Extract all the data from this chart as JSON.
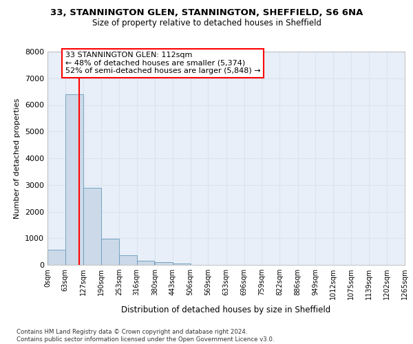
{
  "title_line1": "33, STANNINGTON GLEN, STANNINGTON, SHEFFIELD, S6 6NA",
  "title_line2": "Size of property relative to detached houses in Sheffield",
  "xlabel": "Distribution of detached houses by size in Sheffield",
  "ylabel": "Number of detached properties",
  "bar_color": "#ccd9e8",
  "bar_edge_color": "#6699bb",
  "grid_color": "#d8e4f0",
  "bg_color": "#e8eff8",
  "annotation_text": "33 STANNINGTON GLEN: 112sqm\n← 48% of detached houses are smaller (5,374)\n52% of semi-detached houses are larger (5,848) →",
  "vline_x": 112,
  "vline_color": "red",
  "footnote": "Contains HM Land Registry data © Crown copyright and database right 2024.\nContains public sector information licensed under the Open Government Licence v3.0.",
  "bin_edges": [
    0,
    63,
    127,
    190,
    253,
    316,
    380,
    443,
    506,
    569,
    633,
    696,
    759,
    822,
    886,
    949,
    1012,
    1075,
    1139,
    1202,
    1265
  ],
  "bin_labels": [
    "0sqm",
    "63sqm",
    "127sqm",
    "190sqm",
    "253sqm",
    "316sqm",
    "380sqm",
    "443sqm",
    "506sqm",
    "569sqm",
    "633sqm",
    "696sqm",
    "759sqm",
    "822sqm",
    "886sqm",
    "949sqm",
    "1012sqm",
    "1075sqm",
    "1139sqm",
    "1202sqm",
    "1265sqm"
  ],
  "bar_heights": [
    580,
    6400,
    2900,
    980,
    360,
    160,
    95,
    55,
    0,
    0,
    0,
    0,
    0,
    0,
    0,
    0,
    0,
    0,
    0,
    0
  ],
  "ylim": [
    0,
    8000
  ],
  "yticks": [
    0,
    1000,
    2000,
    3000,
    4000,
    5000,
    6000,
    7000,
    8000
  ]
}
